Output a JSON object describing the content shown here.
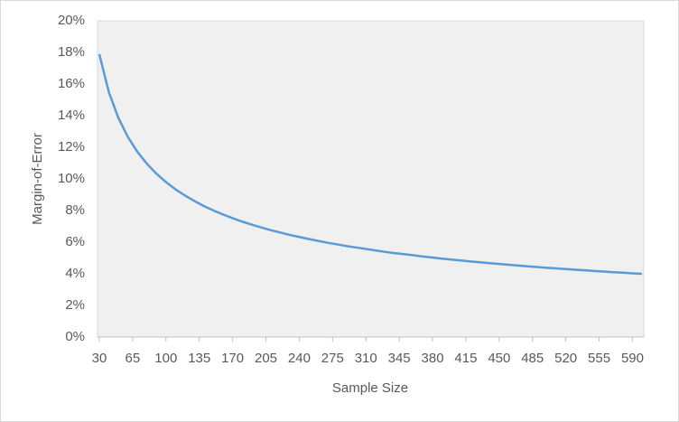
{
  "chart_data": {
    "type": "line",
    "x_label": "Sample Size",
    "y_label": "Margin-of-Error",
    "x": [
      30,
      40,
      50,
      60,
      70,
      80,
      90,
      100,
      110,
      120,
      130,
      140,
      150,
      160,
      170,
      180,
      190,
      200,
      210,
      220,
      230,
      240,
      250,
      260,
      270,
      280,
      290,
      300,
      310,
      320,
      330,
      340,
      350,
      360,
      370,
      380,
      390,
      400,
      410,
      420,
      430,
      440,
      450,
      460,
      470,
      480,
      490,
      500,
      510,
      520,
      530,
      540,
      550,
      560,
      570,
      580,
      590,
      600
    ],
    "series": [
      {
        "name": "Margin-of-Error",
        "color": "#5b9bd5",
        "values": [
          17.89,
          15.49,
          13.86,
          12.65,
          11.71,
          10.96,
          10.33,
          9.8,
          9.34,
          8.95,
          8.6,
          8.28,
          8.0,
          7.75,
          7.52,
          7.3,
          7.11,
          6.93,
          6.76,
          6.61,
          6.46,
          6.33,
          6.2,
          6.08,
          5.96,
          5.86,
          5.75,
          5.66,
          5.57,
          5.48,
          5.39,
          5.31,
          5.24,
          5.17,
          5.09,
          5.03,
          4.96,
          4.9,
          4.84,
          4.78,
          4.73,
          4.67,
          4.62,
          4.57,
          4.52,
          4.47,
          4.43,
          4.38,
          4.34,
          4.3,
          4.26,
          4.22,
          4.18,
          4.14,
          4.1,
          4.07,
          4.03,
          4.0
        ]
      }
    ],
    "xlim": [
      30,
      600
    ],
    "xticks": [
      30,
      65,
      100,
      135,
      170,
      205,
      240,
      275,
      310,
      345,
      380,
      415,
      450,
      485,
      520,
      555,
      590
    ],
    "ylim": [
      0,
      20
    ],
    "yticks": [
      {
        "value": 0,
        "label": "0%"
      },
      {
        "value": 2,
        "label": "2%"
      },
      {
        "value": 4,
        "label": "4%"
      },
      {
        "value": 6,
        "label": "6%"
      },
      {
        "value": 8,
        "label": "8%"
      },
      {
        "value": 10,
        "label": "10%"
      },
      {
        "value": 12,
        "label": "12%"
      },
      {
        "value": 14,
        "label": "14%"
      },
      {
        "value": 16,
        "label": "16%"
      },
      {
        "value": 18,
        "label": "18%"
      },
      {
        "value": 20,
        "label": "20%"
      }
    ],
    "grid": false
  }
}
